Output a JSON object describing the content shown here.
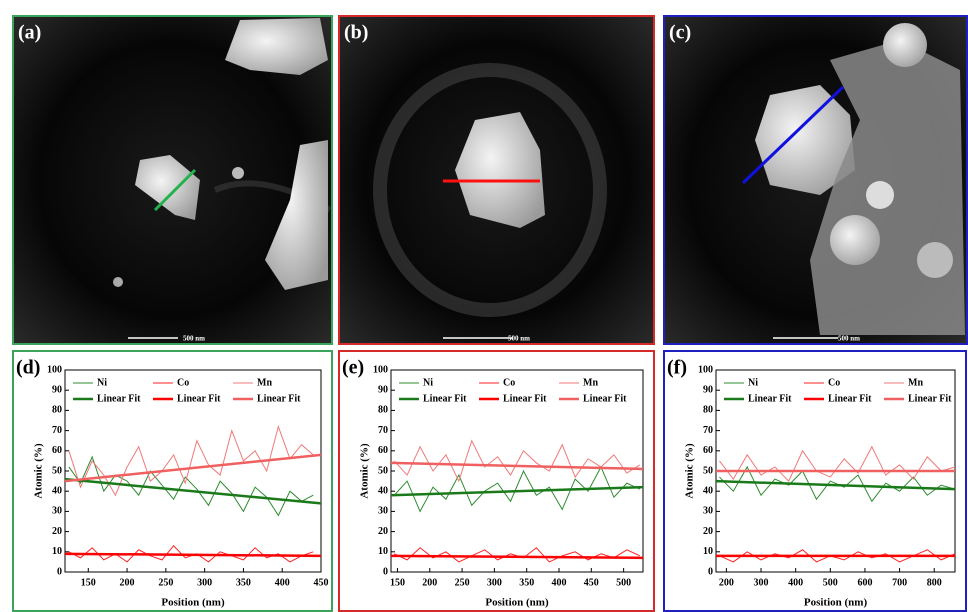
{
  "images": [
    {
      "label": "(a)",
      "scale_bar": "500 nm"
    },
    {
      "label": "(b)",
      "scale_bar": "500 nm"
    },
    {
      "label": "(c)",
      "scale_bar": "500 nm"
    }
  ],
  "chart_data": [
    {
      "type": "line",
      "panel_label": "(d)",
      "x_label": "Position (nm)",
      "y_label": "Atomic (%)",
      "xlim": [
        120,
        450
      ],
      "xticks": [
        150,
        200,
        250,
        300,
        350,
        400,
        450
      ],
      "ylim": [
        0,
        100
      ],
      "yticks": [
        0,
        10,
        20,
        30,
        40,
        50,
        60,
        70,
        80,
        90,
        100
      ],
      "x": [
        125,
        140,
        155,
        170,
        185,
        200,
        215,
        230,
        245,
        260,
        275,
        290,
        305,
        320,
        335,
        350,
        365,
        380,
        395,
        410,
        425,
        440
      ],
      "series": [
        {
          "name": "Ni",
          "color": "#2e8b2e",
          "values": [
            52,
            44,
            57,
            40,
            48,
            45,
            38,
            50,
            43,
            36,
            47,
            41,
            33,
            45,
            39,
            30,
            42,
            37,
            28,
            40,
            35,
            38
          ]
        },
        {
          "name": "Co",
          "color": "#ff2020",
          "values": [
            10,
            7,
            12,
            6,
            9,
            5,
            11,
            8,
            6,
            13,
            7,
            9,
            5,
            10,
            8,
            6,
            12,
            7,
            9,
            5,
            8,
            10
          ]
        },
        {
          "name": "Mn",
          "color": "#f07878",
          "values": [
            60,
            42,
            55,
            48,
            38,
            52,
            62,
            45,
            50,
            58,
            44,
            65,
            53,
            48,
            70,
            55,
            60,
            50,
            72,
            56,
            63,
            58
          ]
        },
        {
          "name": "Linear Fit",
          "color": "#1a7a1a",
          "x": [
            120,
            450
          ],
          "values": [
            46,
            34
          ]
        },
        {
          "name": "Linear Fit",
          "color": "#ff0000",
          "x": [
            120,
            450
          ],
          "values": [
            9,
            8
          ]
        },
        {
          "name": "Linear Fit",
          "color": "#f06060",
          "x": [
            120,
            450
          ],
          "values": [
            45,
            58
          ]
        }
      ]
    },
    {
      "type": "line",
      "panel_label": "(e)",
      "x_label": "Position (nm)",
      "y_label": "Atomic (%)",
      "xlim": [
        140,
        530
      ],
      "xticks": [
        150,
        200,
        250,
        300,
        350,
        400,
        450,
        500
      ],
      "ylim": [
        0,
        100
      ],
      "yticks": [
        0,
        10,
        20,
        30,
        40,
        50,
        60,
        70,
        80,
        90,
        100
      ],
      "x": [
        145,
        165,
        185,
        205,
        225,
        245,
        265,
        285,
        305,
        325,
        345,
        365,
        385,
        405,
        425,
        445,
        465,
        485,
        505,
        525
      ],
      "series": [
        {
          "name": "Ni",
          "color": "#2e8b2e",
          "values": [
            38,
            45,
            30,
            42,
            36,
            48,
            33,
            40,
            44,
            35,
            50,
            38,
            42,
            31,
            46,
            40,
            52,
            37,
            44,
            41
          ]
        },
        {
          "name": "Co",
          "color": "#ff2020",
          "values": [
            9,
            6,
            12,
            7,
            10,
            5,
            8,
            11,
            6,
            9,
            7,
            12,
            5,
            8,
            10,
            6,
            9,
            7,
            11,
            8
          ]
        },
        {
          "name": "Mn",
          "color": "#f07878",
          "values": [
            55,
            48,
            62,
            50,
            58,
            45,
            65,
            52,
            57,
            48,
            60,
            54,
            50,
            63,
            47,
            56,
            52,
            58,
            49,
            53
          ]
        },
        {
          "name": "Linear Fit",
          "color": "#1a7a1a",
          "x": [
            140,
            530
          ],
          "values": [
            38,
            42
          ]
        },
        {
          "name": "Linear Fit",
          "color": "#ff0000",
          "x": [
            140,
            530
          ],
          "values": [
            8,
            7
          ]
        },
        {
          "name": "Linear Fit",
          "color": "#f06060",
          "x": [
            140,
            530
          ],
          "values": [
            54,
            51
          ]
        }
      ]
    },
    {
      "type": "line",
      "panel_label": "(f)",
      "x_label": "Position (nm)",
      "y_label": "Atomic (%)",
      "xlim": [
        170,
        860
      ],
      "xticks": [
        200,
        300,
        400,
        500,
        600,
        700,
        800
      ],
      "ylim": [
        0,
        100
      ],
      "yticks": [
        0,
        10,
        20,
        30,
        40,
        50,
        60,
        70,
        80,
        90,
        100
      ],
      "x": [
        180,
        220,
        260,
        300,
        340,
        380,
        420,
        460,
        500,
        540,
        580,
        620,
        660,
        700,
        740,
        780,
        820,
        860
      ],
      "series": [
        {
          "name": "Ni",
          "color": "#2e8b2e",
          "values": [
            47,
            40,
            52,
            38,
            46,
            43,
            50,
            36,
            45,
            42,
            48,
            35,
            44,
            40,
            47,
            38,
            43,
            41
          ]
        },
        {
          "name": "Co",
          "color": "#ff2020",
          "values": [
            8,
            5,
            10,
            6,
            9,
            7,
            11,
            5,
            8,
            6,
            10,
            7,
            9,
            5,
            8,
            11,
            6,
            9
          ]
        },
        {
          "name": "Mn",
          "color": "#f07878",
          "values": [
            55,
            46,
            58,
            48,
            52,
            45,
            60,
            50,
            47,
            56,
            49,
            62,
            48,
            53,
            46,
            57,
            50,
            52
          ]
        },
        {
          "name": "Linear Fit",
          "color": "#1a7a1a",
          "x": [
            170,
            860
          ],
          "values": [
            45,
            41
          ]
        },
        {
          "name": "Linear Fit",
          "color": "#ff0000",
          "x": [
            170,
            860
          ],
          "values": [
            8,
            8
          ]
        },
        {
          "name": "Linear Fit",
          "color": "#f06060",
          "x": [
            170,
            860
          ],
          "values": [
            50,
            50
          ]
        }
      ]
    }
  ]
}
